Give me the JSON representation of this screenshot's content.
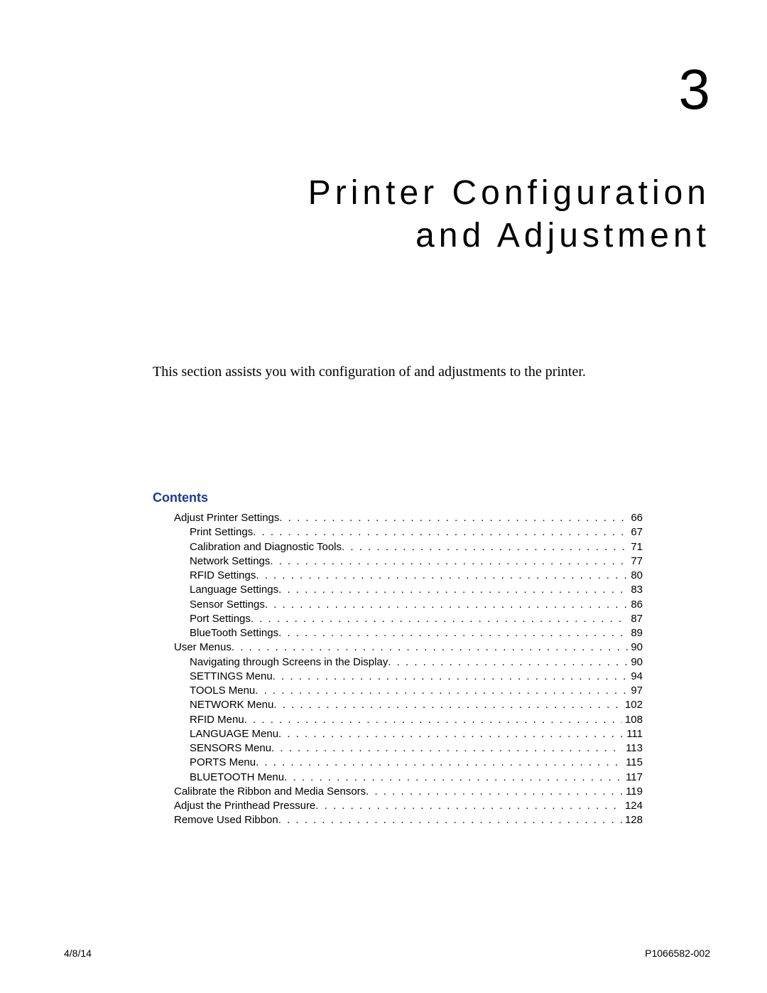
{
  "chapter_number": "3",
  "chapter_title_line1": "Printer Configuration",
  "chapter_title_line2": "and Adjustment",
  "intro_text": "This section assists you with configuration of and adjustments to the printer.",
  "contents_heading": "Contents",
  "contents_heading_color": "#1a3a9e",
  "toc": [
    {
      "label": "Adjust Printer Settings",
      "page": "66",
      "level": 1
    },
    {
      "label": "Print Settings",
      "page": "67",
      "level": 2
    },
    {
      "label": "Calibration and Diagnostic Tools",
      "page": "71",
      "level": 2
    },
    {
      "label": "Network Settings",
      "page": "77",
      "level": 2
    },
    {
      "label": "RFID Settings",
      "page": "80",
      "level": 2
    },
    {
      "label": "Language Settings",
      "page": "83",
      "level": 2
    },
    {
      "label": "Sensor Settings",
      "page": "86",
      "level": 2
    },
    {
      "label": "Port Settings",
      "page": "87",
      "level": 2
    },
    {
      "label": "BlueTooth Settings",
      "page": "89",
      "level": 2
    },
    {
      "label": "User Menus",
      "page": "90",
      "level": 1
    },
    {
      "label": "Navigating through Screens in the Display",
      "page": "90",
      "level": 2
    },
    {
      "label": "SETTINGS Menu",
      "page": "94",
      "level": 2
    },
    {
      "label": "TOOLS Menu",
      "page": "97",
      "level": 2
    },
    {
      "label": "NETWORK Menu",
      "page": "102",
      "level": 2
    },
    {
      "label": "RFID Menu",
      "page": "108",
      "level": 2
    },
    {
      "label": "LANGUAGE Menu",
      "page": "111",
      "level": 2
    },
    {
      "label": "SENSORS Menu",
      "page": "113",
      "level": 2
    },
    {
      "label": "PORTS Menu",
      "page": "115",
      "level": 2
    },
    {
      "label": "BLUETOOTH Menu",
      "page": "117",
      "level": 2
    },
    {
      "label": "Calibrate the Ribbon and Media Sensors",
      "page": "119",
      "level": 1
    },
    {
      "label": "Adjust the Printhead Pressure",
      "page": "124",
      "level": 1
    },
    {
      "label": "Remove Used Ribbon",
      "page": "128",
      "level": 1
    }
  ],
  "footer": {
    "left": "4/8/14",
    "right": "P1066582-002"
  }
}
